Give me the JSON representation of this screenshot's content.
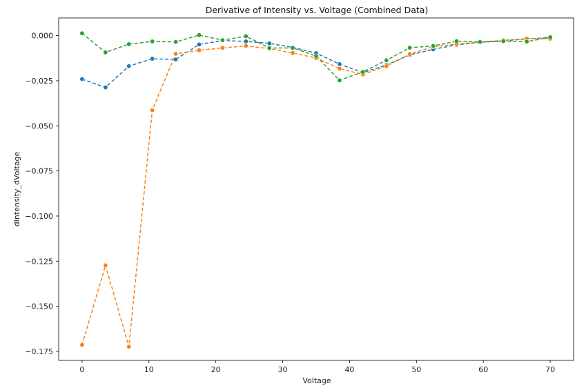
{
  "chart_data": {
    "type": "line",
    "title": "Derivative of Intensity vs. Voltage (Combined Data)",
    "xlabel": "Voltage",
    "ylabel": "dIntensity_dVoltage",
    "xlim": [
      -3.5,
      73.5
    ],
    "ylim": [
      -0.18,
      0.0098
    ],
    "xticks": [
      0,
      10,
      20,
      30,
      40,
      50,
      60,
      70
    ],
    "xtick_labels": [
      "0",
      "10",
      "20",
      "30",
      "40",
      "50",
      "60",
      "70"
    ],
    "yticks": [
      0.0,
      -0.025,
      -0.05,
      -0.075,
      -0.1,
      -0.125,
      -0.15,
      -0.175
    ],
    "ytick_labels": [
      "0.000",
      "−0.025",
      "−0.050",
      "−0.075",
      "−0.100",
      "−0.125",
      "−0.150",
      "−0.175"
    ],
    "grid": false,
    "legend": "none",
    "line_style": "dashed",
    "markers": "circle",
    "x": [
      0,
      3.5,
      7,
      10.5,
      14,
      17.5,
      21,
      24.5,
      28,
      31.5,
      35,
      38.5,
      42,
      45.5,
      49,
      52.5,
      56,
      59.5,
      63,
      66.5,
      70
    ],
    "series": [
      {
        "color": "#1f77b4",
        "values": [
          -0.0241,
          -0.0287,
          -0.0169,
          -0.0128,
          -0.0132,
          -0.0049,
          -0.0027,
          -0.0032,
          -0.0043,
          -0.0065,
          -0.0097,
          -0.0158,
          -0.0205,
          -0.0163,
          -0.0107,
          -0.0076,
          -0.0051,
          -0.0037,
          -0.0029,
          -0.0018,
          -0.0011
        ]
      },
      {
        "color": "#ff7f0e",
        "values": [
          -0.1714,
          -0.1273,
          -0.1724,
          -0.0413,
          -0.0101,
          -0.0081,
          -0.0068,
          -0.0057,
          -0.0072,
          -0.0096,
          -0.0124,
          -0.0183,
          -0.0215,
          -0.0169,
          -0.0102,
          -0.0061,
          -0.0047,
          -0.0035,
          -0.0026,
          -0.0016,
          -0.0017
        ]
      },
      {
        "color": "#2ca02c",
        "values": [
          0.0013,
          -0.0093,
          -0.0047,
          -0.0032,
          -0.0035,
          0.0003,
          -0.0025,
          -0.0003,
          -0.0069,
          -0.0068,
          -0.0113,
          -0.0248,
          -0.0201,
          -0.0137,
          -0.0067,
          -0.0057,
          -0.0031,
          -0.0035,
          -0.0031,
          -0.0033,
          -0.0009
        ]
      }
    ]
  }
}
